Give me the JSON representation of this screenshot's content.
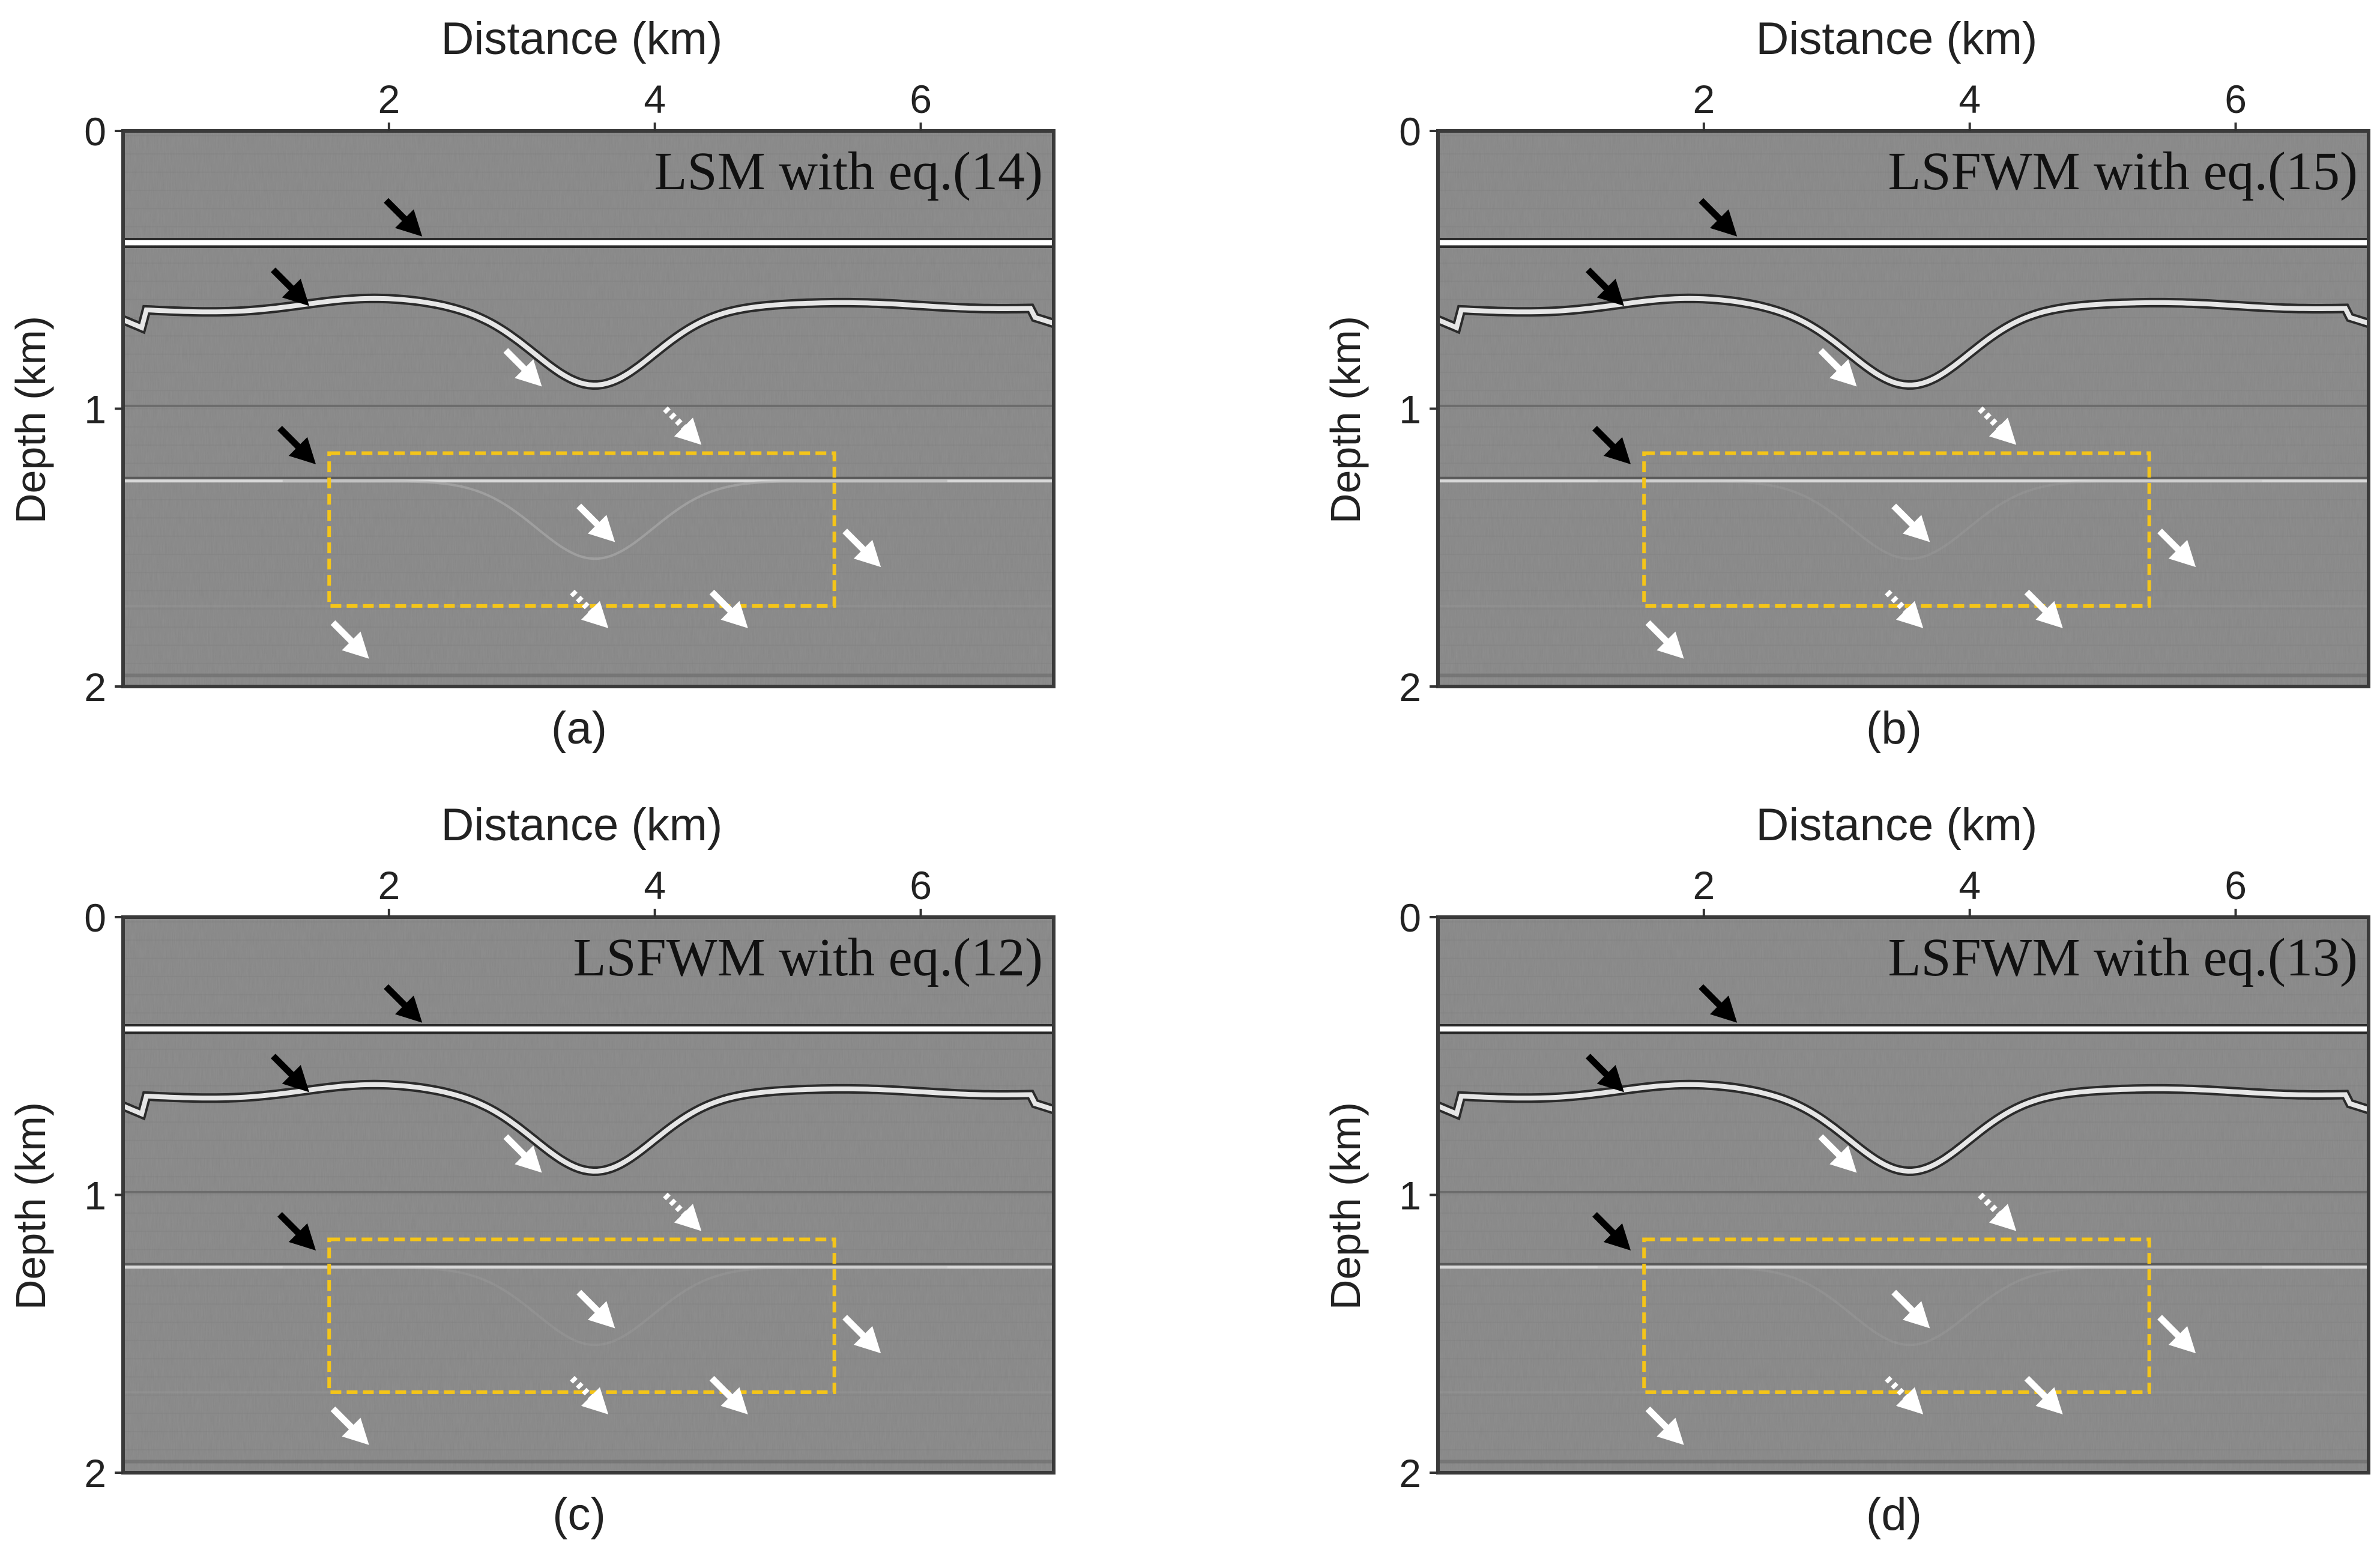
{
  "chart_data": [
    {
      "type": "heatmap",
      "panel_label": "(a)",
      "title": "LSM with eq.(14)",
      "xlabel": "Distance (km)",
      "ylabel": "Depth (km)",
      "xlim": [
        0.0,
        7.0
      ],
      "ylim": [
        2,
        0
      ],
      "xticks": [
        "2",
        "4",
        "6"
      ],
      "yticks": [
        "0",
        "1",
        "2"
      ],
      "box": {
        "x": [
          1.55,
          5.35
        ],
        "y": [
          1.16,
          1.71
        ]
      }
    },
    {
      "type": "heatmap",
      "panel_label": "(b)",
      "title": "LSFWM with eq.(15)",
      "xlabel": "Distance (km)",
      "ylabel": "Depth (km)",
      "xlim": [
        0.0,
        7.0
      ],
      "ylim": [
        2,
        0
      ],
      "xticks": [
        "2",
        "4",
        "6"
      ],
      "yticks": [
        "0",
        "1",
        "2"
      ],
      "box": {
        "x": [
          1.55,
          5.35
        ],
        "y": [
          1.16,
          1.71
        ]
      }
    },
    {
      "type": "heatmap",
      "panel_label": "(c)",
      "title": "LSFWM with eq.(12)",
      "xlabel": "Distance (km)",
      "ylabel": "Depth (km)",
      "xlim": [
        0.0,
        7.0
      ],
      "ylim": [
        2,
        0
      ],
      "xticks": [
        "2",
        "4",
        "6"
      ],
      "yticks": [
        "0",
        "1",
        "2"
      ],
      "box": {
        "x": [
          1.55,
          5.35
        ],
        "y": [
          1.16,
          1.71
        ]
      }
    },
    {
      "type": "heatmap",
      "panel_label": "(d)",
      "title": "LSFWM with eq.(13)",
      "xlabel": "Distance (km)",
      "ylabel": "Depth (km)",
      "xlim": [
        0.0,
        7.0
      ],
      "ylim": [
        2,
        0
      ],
      "xticks": [
        "2",
        "4",
        "6"
      ],
      "yticks": [
        "0",
        "1",
        "2"
      ],
      "box": {
        "x": [
          1.55,
          5.35
        ],
        "y": [
          1.16,
          1.71
        ]
      }
    }
  ],
  "colors": {
    "background": "#858585",
    "reflector": "#ffffff",
    "box": "#f5c518",
    "arrow_black": "#000000",
    "arrow_white": "#ffffff"
  }
}
